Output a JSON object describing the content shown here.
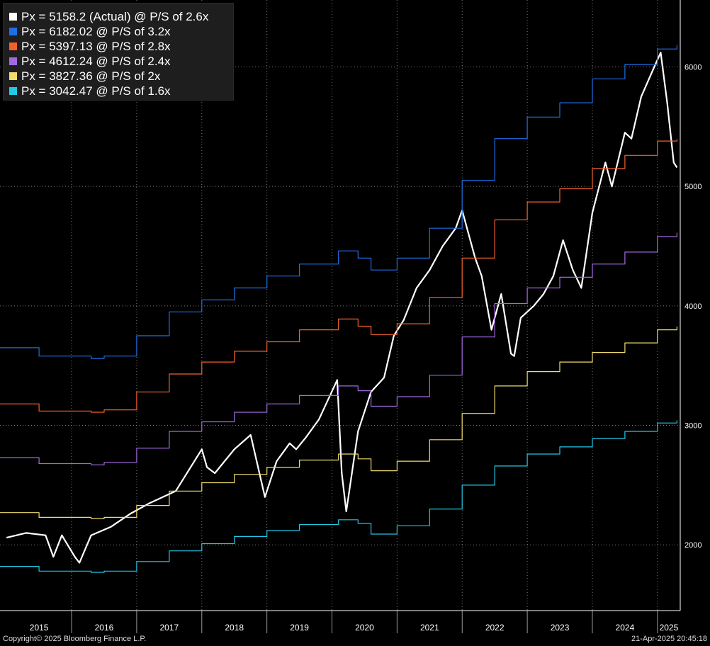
{
  "legend": [
    {
      "text": "Px = 5158.2 (Actual) @ P/S of 2.6x",
      "color": "#ffffff"
    },
    {
      "text": "Px = 6182.02 @ P/S of 3.2x",
      "color": "#1e6fe6"
    },
    {
      "text": "Px = 5397.13 @ P/S of 2.8x",
      "color": "#f2612c"
    },
    {
      "text": "Px = 4612.24 @ P/S of 2.4x",
      "color": "#a36ae0"
    },
    {
      "text": "Px = 3827.36 @ P/S of 2x",
      "color": "#f2dc6b"
    },
    {
      "text": "Px = 3042.47 @ P/S of 1.6x",
      "color": "#22c8e6"
    }
  ],
  "footer": {
    "copyright": "Copyright© 2025 Bloomberg Finance L.P.",
    "timestamp": "21-Apr-2025 20:45:18"
  },
  "chart_data": {
    "type": "line",
    "x_labels": [
      "2015",
      "2016",
      "2017",
      "2018",
      "2019",
      "2020",
      "2021",
      "2022",
      "2023",
      "2024",
      "2025"
    ],
    "y_ticks": [
      2000,
      3000,
      4000,
      5000,
      6000
    ],
    "ylim": [
      1450,
      6560
    ],
    "xlim": [
      2014.9,
      2025.35
    ],
    "grid": true,
    "series": [
      {
        "name": "Px = 5158.2 (Actual) @ P/S of 2.6x",
        "color": "#ffffff",
        "x": [
          2015.0,
          2015.3,
          2015.6,
          2015.72,
          2015.85,
          2016.05,
          2016.12,
          2016.3,
          2016.6,
          2016.9,
          2017.2,
          2017.6,
          2018.0,
          2018.08,
          2018.2,
          2018.5,
          2018.75,
          2018.97,
          2019.15,
          2019.35,
          2019.45,
          2019.6,
          2019.8,
          2020.08,
          2020.15,
          2020.22,
          2020.4,
          2020.6,
          2020.8,
          2020.95,
          2021.1,
          2021.3,
          2021.5,
          2021.7,
          2021.9,
          2022.0,
          2022.2,
          2022.3,
          2022.45,
          2022.6,
          2022.75,
          2022.8,
          2022.9,
          2023.1,
          2023.25,
          2023.4,
          2023.55,
          2023.7,
          2023.83,
          2024.0,
          2024.2,
          2024.3,
          2024.5,
          2024.6,
          2024.75,
          2024.95,
          2025.05,
          2025.15,
          2025.25,
          2025.3
        ],
        "y": [
          2060,
          2100,
          2080,
          1900,
          2080,
          1900,
          1850,
          2080,
          2150,
          2260,
          2350,
          2450,
          2800,
          2650,
          2600,
          2800,
          2920,
          2400,
          2700,
          2850,
          2800,
          2900,
          3050,
          3380,
          2600,
          2280,
          2950,
          3280,
          3400,
          3750,
          3880,
          4150,
          4300,
          4500,
          4650,
          4800,
          4400,
          4250,
          3800,
          4100,
          3600,
          3580,
          3900,
          4000,
          4100,
          4250,
          4550,
          4300,
          4150,
          4780,
          5200,
          5000,
          5450,
          5400,
          5750,
          6000,
          6120,
          5700,
          5200,
          5158.2
        ]
      },
      {
        "name": "Px = 6182.02 @ P/S of 3.2x",
        "color": "#1e6fe6",
        "x": [
          2014.9,
          2015.5,
          2016.3,
          2016.5,
          2017.0,
          2017.5,
          2018.0,
          2018.5,
          2019.0,
          2019.5,
          2020.1,
          2020.4,
          2020.6,
          2021.0,
          2021.5,
          2022.0,
          2022.5,
          2023.0,
          2023.5,
          2024.0,
          2024.5,
          2025.0,
          2025.3
        ],
        "y": [
          3650,
          3580,
          3560,
          3580,
          3750,
          3950,
          4050,
          4150,
          4250,
          4350,
          4460,
          4400,
          4300,
          4400,
          4650,
          5050,
          5400,
          5580,
          5700,
          5900,
          6020,
          6150,
          6182
        ]
      },
      {
        "name": "Px = 5397.13 @ P/S of 2.8x",
        "color": "#f2612c",
        "x": [
          2014.9,
          2015.5,
          2016.3,
          2016.5,
          2017.0,
          2017.5,
          2018.0,
          2018.5,
          2019.0,
          2019.5,
          2020.1,
          2020.4,
          2020.6,
          2021.0,
          2021.5,
          2022.0,
          2022.5,
          2023.0,
          2023.5,
          2024.0,
          2024.5,
          2025.0,
          2025.3
        ],
        "y": [
          3180,
          3120,
          3110,
          3130,
          3280,
          3430,
          3530,
          3620,
          3700,
          3800,
          3890,
          3830,
          3760,
          3850,
          4070,
          4400,
          4720,
          4870,
          4980,
          5150,
          5260,
          5380,
          5397
        ]
      },
      {
        "name": "Px = 4612.24 @ P/S of 2.4x",
        "color": "#a36ae0",
        "x": [
          2014.9,
          2015.5,
          2016.3,
          2016.5,
          2017.0,
          2017.5,
          2018.0,
          2018.5,
          2019.0,
          2019.5,
          2020.1,
          2020.4,
          2020.6,
          2021.0,
          2021.5,
          2022.0,
          2022.5,
          2023.0,
          2023.5,
          2024.0,
          2024.5,
          2025.0,
          2025.3
        ],
        "y": [
          2730,
          2680,
          2670,
          2690,
          2810,
          2950,
          3030,
          3110,
          3180,
          3250,
          3330,
          3290,
          3160,
          3240,
          3420,
          3740,
          4020,
          4150,
          4240,
          4350,
          4450,
          4580,
          4612
        ]
      },
      {
        "name": "Px = 3827.36 @ P/S of 2x",
        "color": "#f2dc6b",
        "x": [
          2014.9,
          2015.5,
          2016.3,
          2016.5,
          2017.0,
          2017.5,
          2018.0,
          2018.5,
          2019.0,
          2019.5,
          2020.1,
          2020.4,
          2020.6,
          2021.0,
          2021.5,
          2022.0,
          2022.5,
          2023.0,
          2023.5,
          2024.0,
          2024.5,
          2025.0,
          2025.3
        ],
        "y": [
          2270,
          2230,
          2220,
          2230,
          2330,
          2450,
          2520,
          2590,
          2650,
          2710,
          2760,
          2720,
          2620,
          2700,
          2880,
          3100,
          3330,
          3450,
          3530,
          3610,
          3690,
          3800,
          3827
        ]
      },
      {
        "name": "Px = 3042.47 @ P/S of 1.6x",
        "color": "#22c8e6",
        "x": [
          2014.9,
          2015.5,
          2016.3,
          2016.5,
          2017.0,
          2017.5,
          2018.0,
          2018.5,
          2019.0,
          2019.5,
          2020.1,
          2020.4,
          2020.6,
          2021.0,
          2021.5,
          2022.0,
          2022.5,
          2023.0,
          2023.5,
          2024.0,
          2024.5,
          2025.0,
          2025.3
        ],
        "y": [
          1820,
          1780,
          1770,
          1780,
          1860,
          1950,
          2010,
          2070,
          2120,
          2170,
          2210,
          2180,
          2090,
          2160,
          2300,
          2500,
          2660,
          2760,
          2820,
          2890,
          2950,
          3020,
          3042
        ]
      }
    ]
  }
}
